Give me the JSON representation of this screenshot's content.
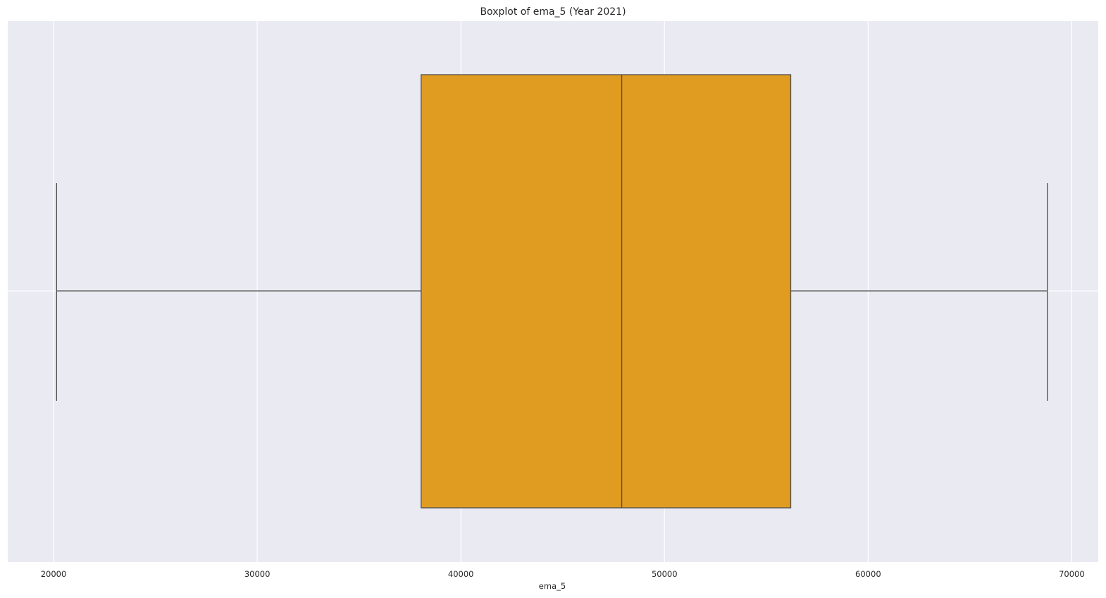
{
  "chart_data": {
    "type": "boxplot",
    "orientation": "horizontal",
    "title": "Boxplot of ema_5 (Year 2021)",
    "xlabel": "ema_5",
    "ylabel": "",
    "xlim": [
      17750,
      71300
    ],
    "xticks": [
      20000,
      30000,
      40000,
      50000,
      60000,
      70000
    ],
    "grid": true,
    "box": {
      "whisker_low": 20150,
      "q1": 38050,
      "median": 47900,
      "q3": 56200,
      "whisker_high": 68800
    },
    "colors": {
      "box_fill": "#e09c21",
      "line": "#4d4d4d",
      "plot_background": "#eaeaf2",
      "grid": "#ffffff"
    }
  }
}
